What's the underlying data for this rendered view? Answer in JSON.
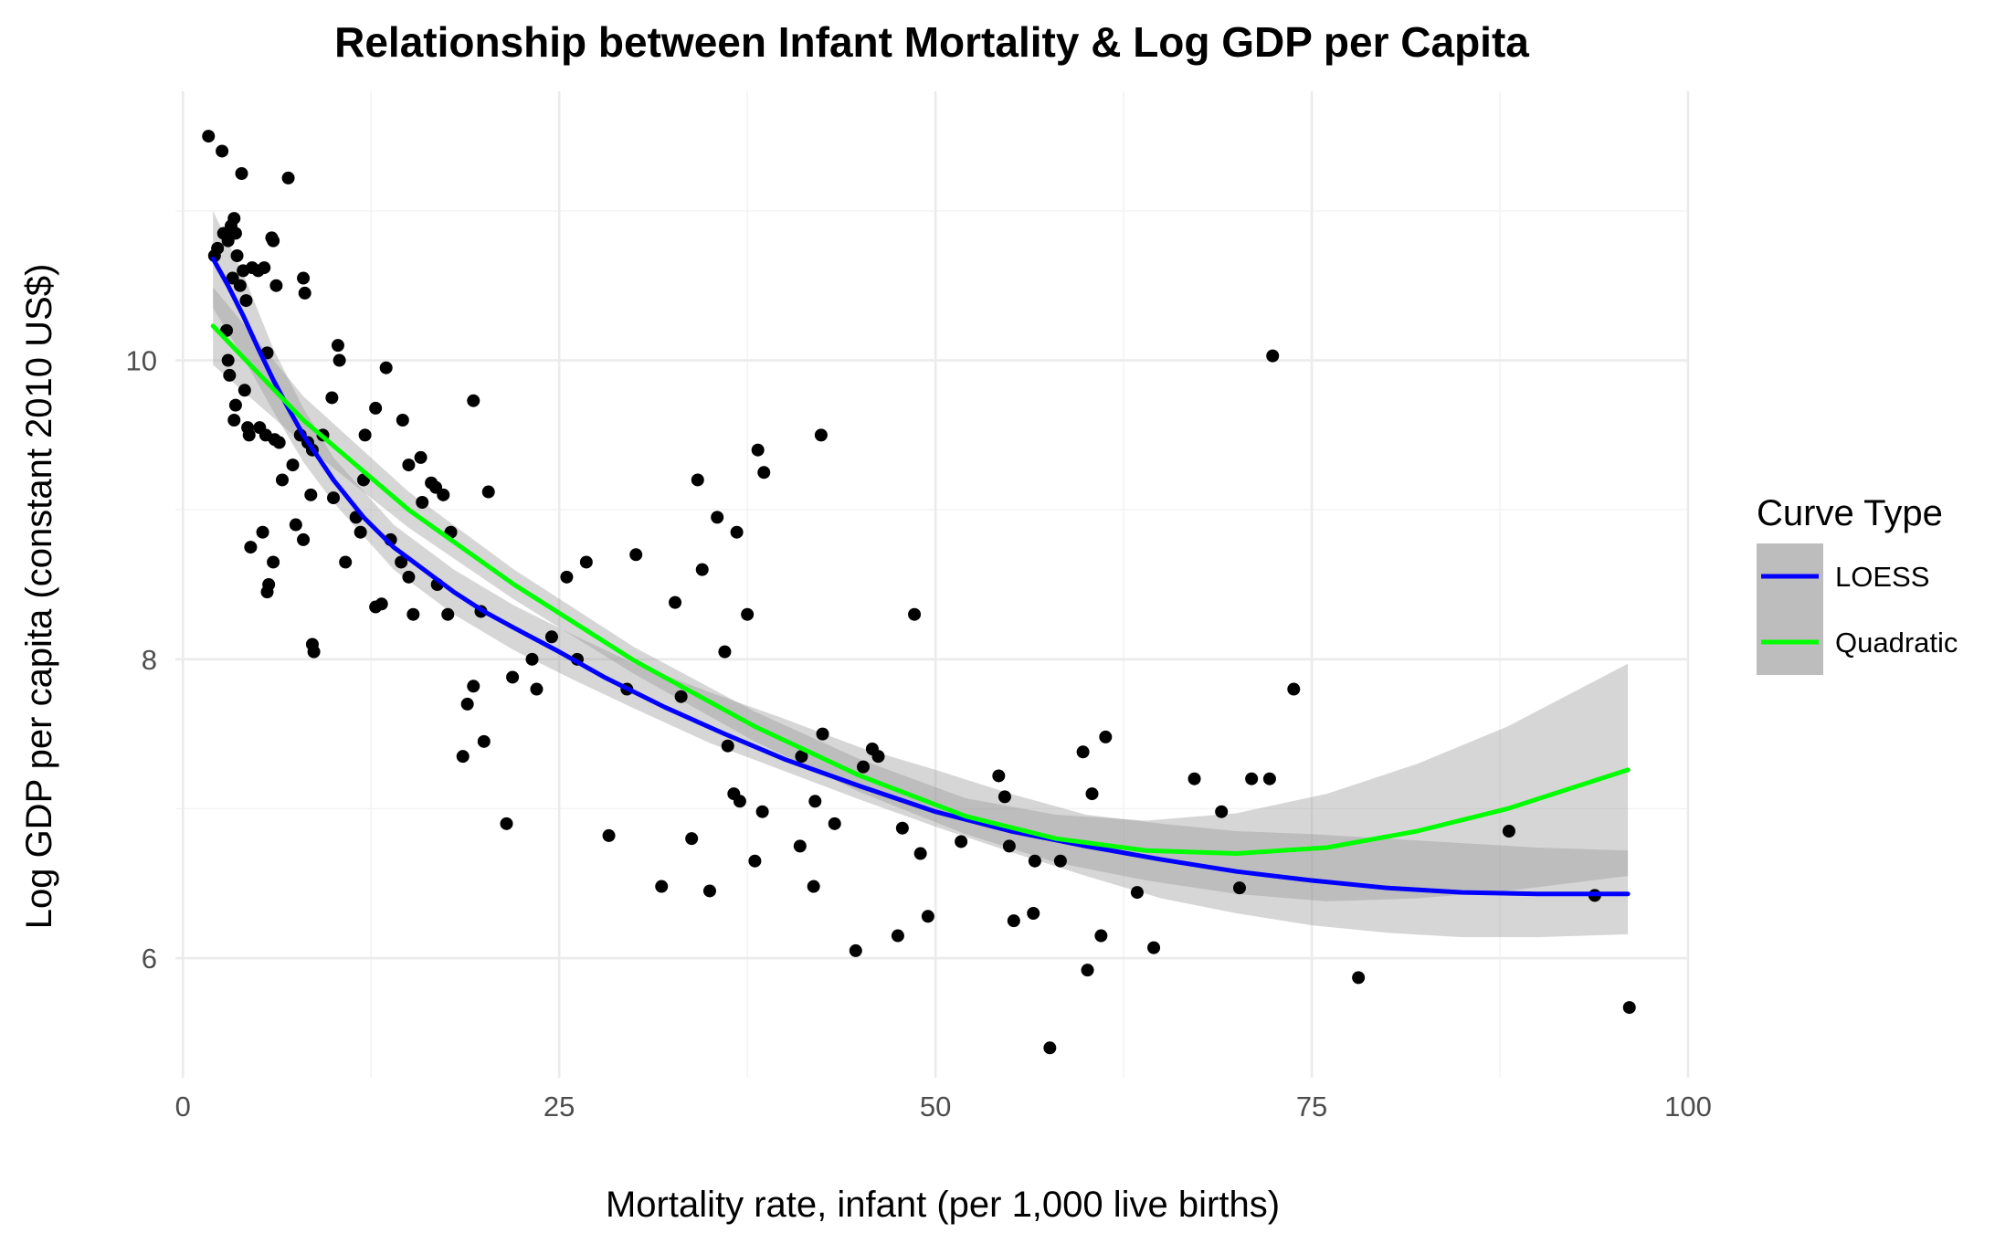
{
  "chart_data": {
    "type": "scatter",
    "title": "Relationship between Infant Mortality & Log GDP per Capita",
    "xlabel": "Mortality rate, infant (per 1,000 live births)",
    "ylabel": "Log GDP per capita (constant 2010 US$)",
    "xlim": [
      -0.5,
      100
    ],
    "ylim": [
      5.2,
      11.8
    ],
    "x_ticks": [
      0,
      25,
      50,
      75,
      100
    ],
    "y_ticks": [
      6,
      8,
      10
    ],
    "x_tick_labels": [
      "0",
      "25",
      "50",
      "75",
      "100"
    ],
    "y_tick_labels": [
      "6",
      "8",
      "10"
    ],
    "grid": true,
    "legend": {
      "title": "Curve Type",
      "position": "right",
      "entries": [
        {
          "label": "LOESS",
          "color": "#0000ff"
        },
        {
          "label": "Quadratic",
          "color": "#00ff00"
        }
      ]
    },
    "colors": {
      "points": "#000000",
      "loess": "#0000ff",
      "quadratic": "#00ff00",
      "ribbon": "#999999"
    },
    "points": [
      [
        1.7,
        11.5
      ],
      [
        2.1,
        10.7
      ],
      [
        2.3,
        10.75
      ],
      [
        2.6,
        11.4
      ],
      [
        2.7,
        10.85
      ],
      [
        3.0,
        10.8
      ],
      [
        3.2,
        10.9
      ],
      [
        3.3,
        10.55
      ],
      [
        3.4,
        10.95
      ],
      [
        3.6,
        10.7
      ],
      [
        3.9,
        11.25
      ],
      [
        4.0,
        10.6
      ],
      [
        3.5,
        10.85
      ],
      [
        3.8,
        10.5
      ],
      [
        4.2,
        10.4
      ],
      [
        4.6,
        10.62
      ],
      [
        5.0,
        10.6
      ],
      [
        5.4,
        10.62
      ],
      [
        6.0,
        10.8
      ],
      [
        7.0,
        11.22
      ],
      [
        5.9,
        10.82
      ],
      [
        6.2,
        10.5
      ],
      [
        8.0,
        10.55
      ],
      [
        8.1,
        10.45
      ],
      [
        3.0,
        10.0
      ],
      [
        3.5,
        9.7
      ],
      [
        4.1,
        9.8
      ],
      [
        2.9,
        10.2
      ],
      [
        3.1,
        9.9
      ],
      [
        3.4,
        9.6
      ],
      [
        4.3,
        9.55
      ],
      [
        4.4,
        9.5
      ],
      [
        5.1,
        9.55
      ],
      [
        5.6,
        10.05
      ],
      [
        5.5,
        9.5
      ],
      [
        6.1,
        9.47
      ],
      [
        6.4,
        9.45
      ],
      [
        7.3,
        9.3
      ],
      [
        6.6,
        9.2
      ],
      [
        7.8,
        9.5
      ],
      [
        8.3,
        9.45
      ],
      [
        8.6,
        9.4
      ],
      [
        9.3,
        9.5
      ],
      [
        9.9,
        9.75
      ],
      [
        10.3,
        10.1
      ],
      [
        10.4,
        10.0
      ],
      [
        12.1,
        9.5
      ],
      [
        12.8,
        9.68
      ],
      [
        13.5,
        9.95
      ],
      [
        14.6,
        9.6
      ],
      [
        15.0,
        9.3
      ],
      [
        15.8,
        9.35
      ],
      [
        16.8,
        9.15
      ],
      [
        17.3,
        9.1
      ],
      [
        19.3,
        9.73
      ],
      [
        17.8,
        8.85
      ],
      [
        4.5,
        8.75
      ],
      [
        5.3,
        8.85
      ],
      [
        5.6,
        8.45
      ],
      [
        5.7,
        8.5
      ],
      [
        6.0,
        8.65
      ],
      [
        7.5,
        8.9
      ],
      [
        8.0,
        8.8
      ],
      [
        8.5,
        9.1
      ],
      [
        8.6,
        8.1
      ],
      [
        8.7,
        8.05
      ],
      [
        10.0,
        9.08
      ],
      [
        10.8,
        8.65
      ],
      [
        11.5,
        8.95
      ],
      [
        11.8,
        8.85
      ],
      [
        12.0,
        9.2
      ],
      [
        12.8,
        8.35
      ],
      [
        13.2,
        8.37
      ],
      [
        13.8,
        8.8
      ],
      [
        14.5,
        8.65
      ],
      [
        15.0,
        8.55
      ],
      [
        15.3,
        8.3
      ],
      [
        15.9,
        9.05
      ],
      [
        16.5,
        9.18
      ],
      [
        16.9,
        8.5
      ],
      [
        17.6,
        8.3
      ],
      [
        18.6,
        7.35
      ],
      [
        18.9,
        7.7
      ],
      [
        19.3,
        7.82
      ],
      [
        20.3,
        9.12
      ],
      [
        19.8,
        8.32
      ],
      [
        20.0,
        7.45
      ],
      [
        21.5,
        6.9
      ],
      [
        21.9,
        7.88
      ],
      [
        23.2,
        8.0
      ],
      [
        23.5,
        7.8
      ],
      [
        24.5,
        8.15
      ],
      [
        25.5,
        8.55
      ],
      [
        26.2,
        8.0
      ],
      [
        26.8,
        8.65
      ],
      [
        28.3,
        6.82
      ],
      [
        29.5,
        7.8
      ],
      [
        30.1,
        8.7
      ],
      [
        31.8,
        6.48
      ],
      [
        32.7,
        8.38
      ],
      [
        33.1,
        7.75
      ],
      [
        33.8,
        6.8
      ],
      [
        34.2,
        9.2
      ],
      [
        34.5,
        8.6
      ],
      [
        35.0,
        6.45
      ],
      [
        35.5,
        8.95
      ],
      [
        36.0,
        8.05
      ],
      [
        36.2,
        7.42
      ],
      [
        36.8,
        8.85
      ],
      [
        37.5,
        8.3
      ],
      [
        36.6,
        7.1
      ],
      [
        37.0,
        7.05
      ],
      [
        38.0,
        6.65
      ],
      [
        38.2,
        9.4
      ],
      [
        38.6,
        9.25
      ],
      [
        38.5,
        6.98
      ],
      [
        41.1,
        7.35
      ],
      [
        41.0,
        6.75
      ],
      [
        42.4,
        9.5
      ],
      [
        42.5,
        7.5
      ],
      [
        41.9,
        6.48
      ],
      [
        42.0,
        7.05
      ],
      [
        43.3,
        6.9
      ],
      [
        44.7,
        6.05
      ],
      [
        45.2,
        7.28
      ],
      [
        45.8,
        7.4
      ],
      [
        46.2,
        7.35
      ],
      [
        47.5,
        6.15
      ],
      [
        47.8,
        6.87
      ],
      [
        48.6,
        8.3
      ],
      [
        49.0,
        6.7
      ],
      [
        49.5,
        6.28
      ],
      [
        51.7,
        6.78
      ],
      [
        54.2,
        7.22
      ],
      [
        54.6,
        7.08
      ],
      [
        55.2,
        6.25
      ],
      [
        54.9,
        6.75
      ],
      [
        56.5,
        6.3
      ],
      [
        56.6,
        6.65
      ],
      [
        57.6,
        5.4
      ],
      [
        58.3,
        6.65
      ],
      [
        59.8,
        7.38
      ],
      [
        60.1,
        5.92
      ],
      [
        60.4,
        7.1
      ],
      [
        61.0,
        6.15
      ],
      [
        61.3,
        7.48
      ],
      [
        63.4,
        6.44
      ],
      [
        64.5,
        6.07
      ],
      [
        67.2,
        7.2
      ],
      [
        69.0,
        6.98
      ],
      [
        70.2,
        6.47
      ],
      [
        71.0,
        7.2
      ],
      [
        72.2,
        7.2
      ],
      [
        72.4,
        10.03
      ],
      [
        73.8,
        7.8
      ],
      [
        78.1,
        5.87
      ],
      [
        88.1,
        6.85
      ],
      [
        93.8,
        6.42
      ],
      [
        96.1,
        5.67
      ]
    ],
    "loess": {
      "x": [
        2,
        3,
        4,
        5,
        6,
        7,
        8,
        10,
        12,
        14,
        16,
        18,
        20,
        22,
        25,
        28,
        32,
        36,
        40,
        45,
        50,
        55,
        60,
        65,
        70,
        75,
        80,
        85,
        90,
        96
      ],
      "y": [
        10.68,
        10.5,
        10.3,
        10.08,
        9.87,
        9.68,
        9.5,
        9.2,
        8.95,
        8.75,
        8.6,
        8.45,
        8.32,
        8.21,
        8.05,
        7.88,
        7.68,
        7.5,
        7.33,
        7.15,
        6.98,
        6.85,
        6.75,
        6.66,
        6.58,
        6.52,
        6.47,
        6.44,
        6.43,
        6.43
      ]
    },
    "loess_band": {
      "x": [
        2,
        4,
        6,
        8,
        10,
        14,
        18,
        22,
        26,
        30,
        35,
        40,
        45,
        50,
        55,
        60,
        65,
        70,
        75,
        80,
        85,
        90,
        96
      ],
      "lower": [
        10.35,
        10.02,
        9.66,
        9.32,
        9.05,
        8.6,
        8.3,
        8.06,
        7.86,
        7.67,
        7.44,
        7.25,
        7.06,
        6.88,
        6.71,
        6.55,
        6.4,
        6.3,
        6.22,
        6.17,
        6.14,
        6.14,
        6.16
      ],
      "upper": [
        11.0,
        10.58,
        10.08,
        9.68,
        9.35,
        8.9,
        8.6,
        8.36,
        8.16,
        7.97,
        7.78,
        7.6,
        7.41,
        7.26,
        7.1,
        6.96,
        6.9,
        6.85,
        6.83,
        6.8,
        6.77,
        6.74,
        6.72
      ]
    },
    "quadratic": {
      "x": [
        2,
        8,
        15,
        22,
        30,
        38,
        45,
        52,
        58,
        64,
        70,
        76,
        82,
        88,
        96
      ],
      "y": [
        10.23,
        9.6,
        9.0,
        8.5,
        7.99,
        7.55,
        7.22,
        6.95,
        6.8,
        6.72,
        6.7,
        6.74,
        6.85,
        7.0,
        7.26
      ]
    },
    "quadratic_band": {
      "x": [
        2,
        8,
        15,
        22,
        30,
        38,
        45,
        52,
        58,
        64,
        70,
        76,
        82,
        88,
        96
      ],
      "lower": [
        9.97,
        9.44,
        8.88,
        8.4,
        7.9,
        7.45,
        7.11,
        6.83,
        6.64,
        6.52,
        6.43,
        6.38,
        6.4,
        6.45,
        6.55
      ],
      "upper": [
        10.49,
        9.76,
        9.12,
        8.6,
        8.08,
        7.65,
        7.33,
        7.07,
        6.96,
        6.92,
        6.97,
        7.1,
        7.3,
        7.55,
        7.97
      ]
    }
  }
}
